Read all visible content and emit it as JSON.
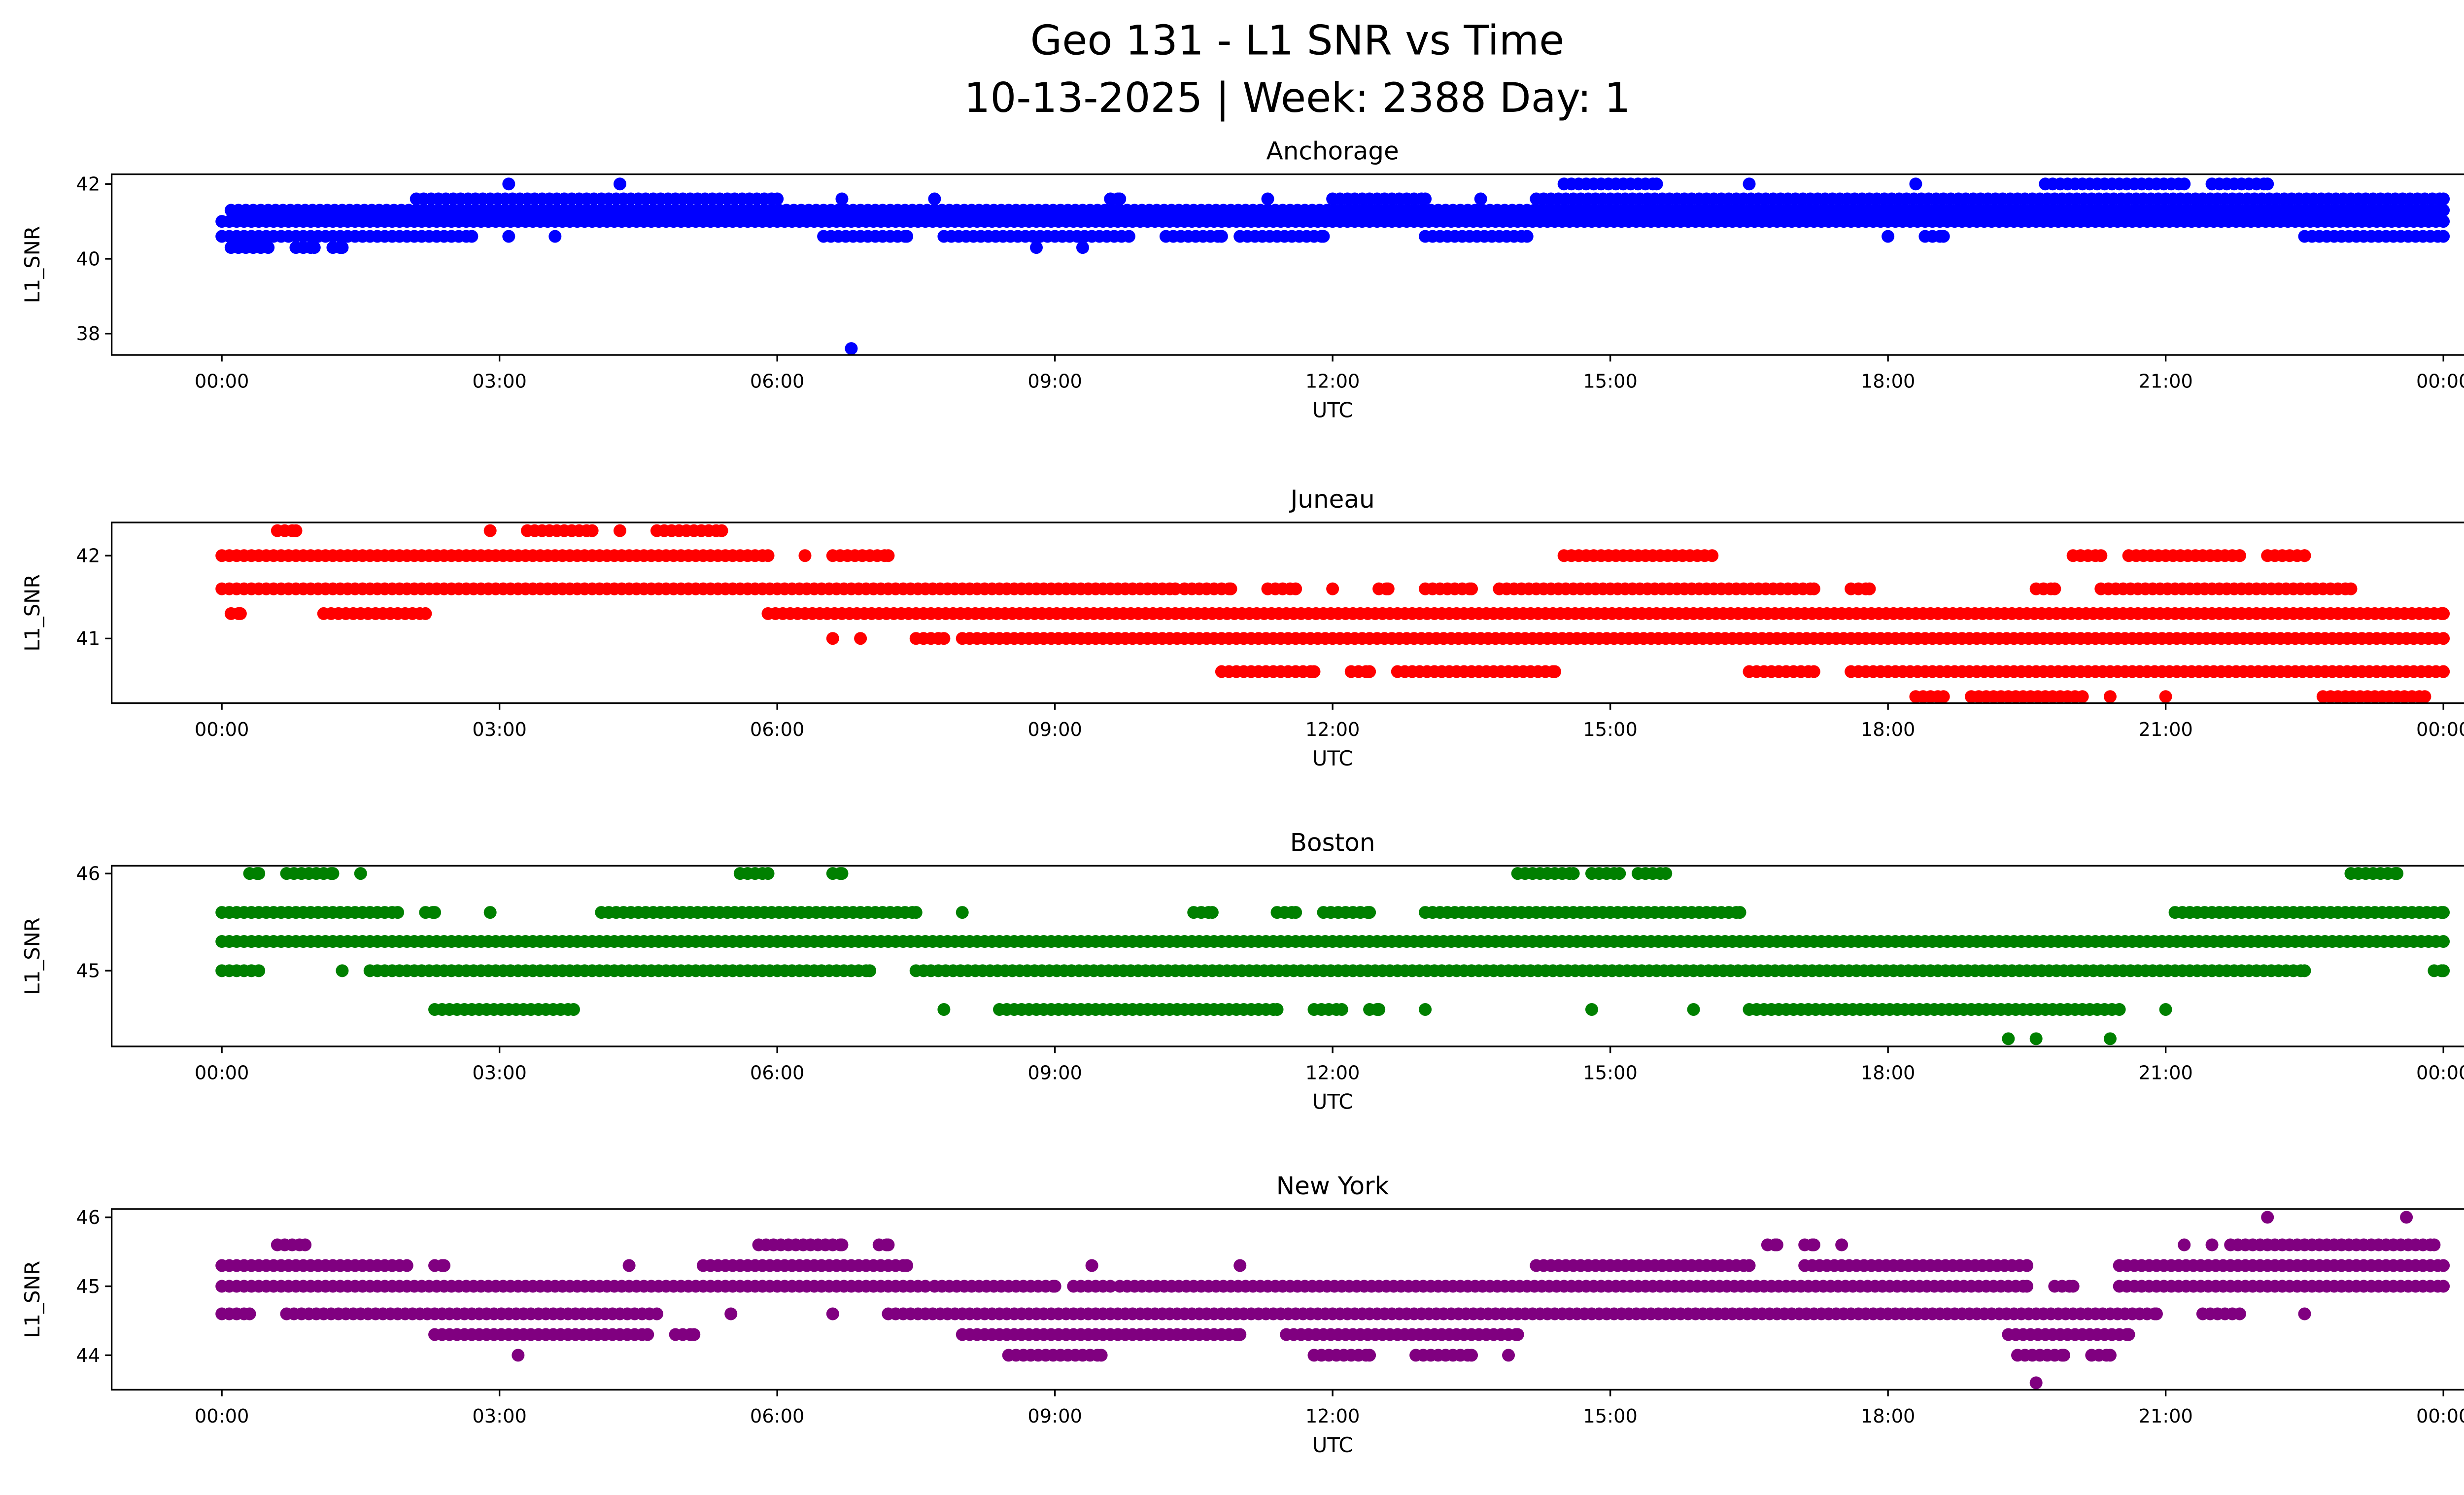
{
  "chart_data": {
    "type": "scatter",
    "title": "Geo 131 - L1 SNR vs Time",
    "subtitle": "10-13-2025 | Week: 2388 Day: 1",
    "x_unit": "hours UTC",
    "xlabel": "UTC",
    "ylabel": "L1_SNR",
    "xticks": [
      0,
      3,
      6,
      9,
      12,
      15,
      18,
      21,
      24
    ],
    "xtick_labels": [
      "00:00",
      "03:00",
      "06:00",
      "09:00",
      "12:00",
      "15:00",
      "18:00",
      "21:00",
      "00:00"
    ],
    "xlim": [
      -1.19,
      25.19
    ],
    "grid": false,
    "panels": [
      {
        "name": "Anchorage",
        "color": "#0000ff",
        "ylim": [
          37.43,
          42.26
        ],
        "yticks": [
          38,
          40,
          42
        ],
        "ytick_labels": [
          "38",
          "40",
          "42"
        ],
        "levels": [
          {
            "y": 42.0,
            "runs": [
              [
                3.1,
                3.1
              ],
              [
                4.3,
                4.3
              ],
              [
                14.5,
                15.5
              ],
              [
                16.5,
                16.5
              ],
              [
                18.3,
                18.3
              ],
              [
                19.7,
                21.2
              ],
              [
                21.5,
                22.1
              ]
            ]
          },
          {
            "y": 41.6,
            "runs": [
              [
                2.1,
                6.0
              ],
              [
                6.7,
                6.7
              ],
              [
                7.7,
                7.7
              ],
              [
                9.6,
                9.7
              ],
              [
                11.3,
                11.3
              ],
              [
                12.0,
                13.0
              ],
              [
                13.6,
                13.6
              ],
              [
                14.2,
                24.0
              ]
            ]
          },
          {
            "y": 41.3,
            "runs": [
              [
                0.1,
                24.0
              ]
            ]
          },
          {
            "y": 41.0,
            "runs": [
              [
                0.0,
                24.0
              ]
            ]
          },
          {
            "y": 40.6,
            "runs": [
              [
                0.0,
                2.7
              ],
              [
                3.1,
                3.1
              ],
              [
                3.6,
                3.6
              ],
              [
                6.5,
                7.4
              ],
              [
                7.8,
                9.8
              ],
              [
                10.2,
                10.8
              ],
              [
                11.0,
                11.9
              ],
              [
                13.0,
                14.1
              ],
              [
                18.0,
                18.0
              ],
              [
                18.4,
                18.6
              ],
              [
                22.5,
                24.0
              ]
            ]
          },
          {
            "y": 40.3,
            "runs": [
              [
                0.1,
                0.5
              ],
              [
                0.8,
                1.0
              ],
              [
                1.2,
                1.3
              ],
              [
                8.8,
                8.8
              ],
              [
                9.3,
                9.3
              ]
            ]
          },
          {
            "y": 37.6,
            "runs": [
              [
                6.8,
                6.8
              ]
            ]
          }
        ]
      },
      {
        "name": "Juneau",
        "color": "#ff0000",
        "ylim": [
          40.22,
          42.4
        ],
        "yticks": [
          41,
          42
        ],
        "ytick_labels": [
          "41",
          "42"
        ],
        "levels": [
          {
            "y": 42.3,
            "runs": [
              [
                0.6,
                0.8
              ],
              [
                2.9,
                2.9
              ],
              [
                3.3,
                4.0
              ],
              [
                4.3,
                4.3
              ],
              [
                4.7,
                5.4
              ]
            ]
          },
          {
            "y": 42.0,
            "runs": [
              [
                0.0,
                5.9
              ],
              [
                6.3,
                6.3
              ],
              [
                6.6,
                7.2
              ],
              [
                14.5,
                16.1
              ],
              [
                20.0,
                20.3
              ],
              [
                20.6,
                21.8
              ],
              [
                22.1,
                22.5
              ]
            ]
          },
          {
            "y": 41.6,
            "runs": [
              [
                0.0,
                10.3
              ],
              [
                10.4,
                10.9
              ],
              [
                11.3,
                11.6
              ],
              [
                12.0,
                12.0
              ],
              [
                12.5,
                12.6
              ],
              [
                13.0,
                13.5
              ],
              [
                13.8,
                17.2
              ],
              [
                17.6,
                17.8
              ],
              [
                19.6,
                19.8
              ],
              [
                20.3,
                23.0
              ]
            ]
          },
          {
            "y": 41.3,
            "runs": [
              [
                0.1,
                0.2
              ],
              [
                1.1,
                2.2
              ],
              [
                5.9,
                24.0
              ]
            ]
          },
          {
            "y": 41.0,
            "runs": [
              [
                6.6,
                6.6
              ],
              [
                6.9,
                6.9
              ],
              [
                7.5,
                7.8
              ],
              [
                8.0,
                24.0
              ]
            ]
          },
          {
            "y": 40.6,
            "runs": [
              [
                10.8,
                11.8
              ],
              [
                12.2,
                12.4
              ],
              [
                12.7,
                14.4
              ],
              [
                16.5,
                17.2
              ],
              [
                17.6,
                24.0
              ]
            ]
          },
          {
            "y": 40.3,
            "runs": [
              [
                18.3,
                18.6
              ],
              [
                18.9,
                20.1
              ],
              [
                20.4,
                20.4
              ],
              [
                21.0,
                21.0
              ],
              [
                22.7,
                23.8
              ]
            ]
          }
        ]
      },
      {
        "name": "Boston",
        "color": "#008000",
        "ylim": [
          44.22,
          46.08
        ],
        "yticks": [
          45,
          46
        ],
        "ytick_labels": [
          "45",
          "46"
        ],
        "levels": [
          {
            "y": 46.0,
            "runs": [
              [
                0.3,
                0.4
              ],
              [
                0.7,
                1.2
              ],
              [
                1.5,
                1.5
              ],
              [
                5.6,
                5.9
              ],
              [
                6.6,
                6.7
              ],
              [
                14.0,
                14.6
              ],
              [
                14.8,
                15.1
              ],
              [
                15.3,
                15.6
              ],
              [
                23.0,
                23.5
              ]
            ]
          },
          {
            "y": 45.6,
            "runs": [
              [
                0.0,
                1.9
              ],
              [
                2.2,
                2.3
              ],
              [
                2.9,
                2.9
              ],
              [
                4.1,
                7.5
              ],
              [
                8.0,
                8.0
              ],
              [
                10.5,
                10.7
              ],
              [
                11.4,
                11.6
              ],
              [
                11.9,
                12.4
              ],
              [
                13.0,
                16.4
              ],
              [
                21.1,
                24.0
              ]
            ]
          },
          {
            "y": 45.3,
            "runs": [
              [
                0.0,
                24.0
              ]
            ]
          },
          {
            "y": 45.0,
            "runs": [
              [
                0.0,
                0.4
              ],
              [
                1.3,
                1.3
              ],
              [
                1.6,
                7.0
              ],
              [
                7.5,
                22.5
              ],
              [
                23.9,
                24.0
              ]
            ]
          },
          {
            "y": 44.6,
            "runs": [
              [
                2.3,
                3.8
              ],
              [
                7.8,
                7.8
              ],
              [
                8.4,
                11.4
              ],
              [
                11.8,
                12.1
              ],
              [
                12.4,
                12.5
              ],
              [
                13.0,
                13.0
              ],
              [
                14.8,
                14.8
              ],
              [
                15.9,
                15.9
              ],
              [
                16.5,
                20.5
              ],
              [
                21.0,
                21.0
              ]
            ]
          },
          {
            "y": 44.3,
            "runs": [
              [
                19.3,
                19.3
              ],
              [
                19.6,
                19.6
              ],
              [
                20.4,
                20.4
              ]
            ]
          }
        ]
      },
      {
        "name": "New York",
        "color": "#800080",
        "ylim": [
          43.5,
          46.12
        ],
        "yticks": [
          44,
          45,
          46
        ],
        "ytick_labels": [
          "44",
          "45",
          "46"
        ],
        "levels": [
          {
            "y": 46.0,
            "runs": [
              [
                22.1,
                22.1
              ],
              [
                23.6,
                23.6
              ]
            ]
          },
          {
            "y": 45.6,
            "runs": [
              [
                0.6,
                0.9
              ],
              [
                5.8,
                6.7
              ],
              [
                7.1,
                7.2
              ],
              [
                16.7,
                16.8
              ],
              [
                17.1,
                17.2
              ],
              [
                17.5,
                17.5
              ],
              [
                21.2,
                21.2
              ],
              [
                21.5,
                21.5
              ],
              [
                21.7,
                23.9
              ]
            ]
          },
          {
            "y": 45.3,
            "runs": [
              [
                0.0,
                2.0
              ],
              [
                2.3,
                2.4
              ],
              [
                4.4,
                4.4
              ],
              [
                5.2,
                7.4
              ],
              [
                9.4,
                9.4
              ],
              [
                11.0,
                11.0
              ],
              [
                14.2,
                16.5
              ],
              [
                17.1,
                19.5
              ],
              [
                20.5,
                24.0
              ]
            ]
          },
          {
            "y": 45.0,
            "runs": [
              [
                0.0,
                7.6
              ],
              [
                7.7,
                9.0
              ],
              [
                9.2,
                9.6
              ],
              [
                9.7,
                19.5
              ],
              [
                19.8,
                20.0
              ],
              [
                20.5,
                24.0
              ]
            ]
          },
          {
            "y": 44.6,
            "runs": [
              [
                0.0,
                0.3
              ],
              [
                0.7,
                4.7
              ],
              [
                5.5,
                5.5
              ],
              [
                6.6,
                6.6
              ],
              [
                7.2,
                20.9
              ],
              [
                21.4,
                21.8
              ],
              [
                22.5,
                22.5
              ]
            ]
          },
          {
            "y": 44.3,
            "runs": [
              [
                2.3,
                4.6
              ],
              [
                4.9,
                5.1
              ],
              [
                8.0,
                11.0
              ],
              [
                11.5,
                14.0
              ],
              [
                19.3,
                20.6
              ]
            ]
          },
          {
            "y": 44.0,
            "runs": [
              [
                3.2,
                3.2
              ],
              [
                8.5,
                9.5
              ],
              [
                11.8,
                12.4
              ],
              [
                12.9,
                13.5
              ],
              [
                13.9,
                13.9
              ],
              [
                19.4,
                19.9
              ],
              [
                20.2,
                20.4
              ]
            ]
          },
          {
            "y": 43.6,
            "runs": [
              [
                19.6,
                19.6
              ]
            ]
          }
        ]
      }
    ]
  }
}
